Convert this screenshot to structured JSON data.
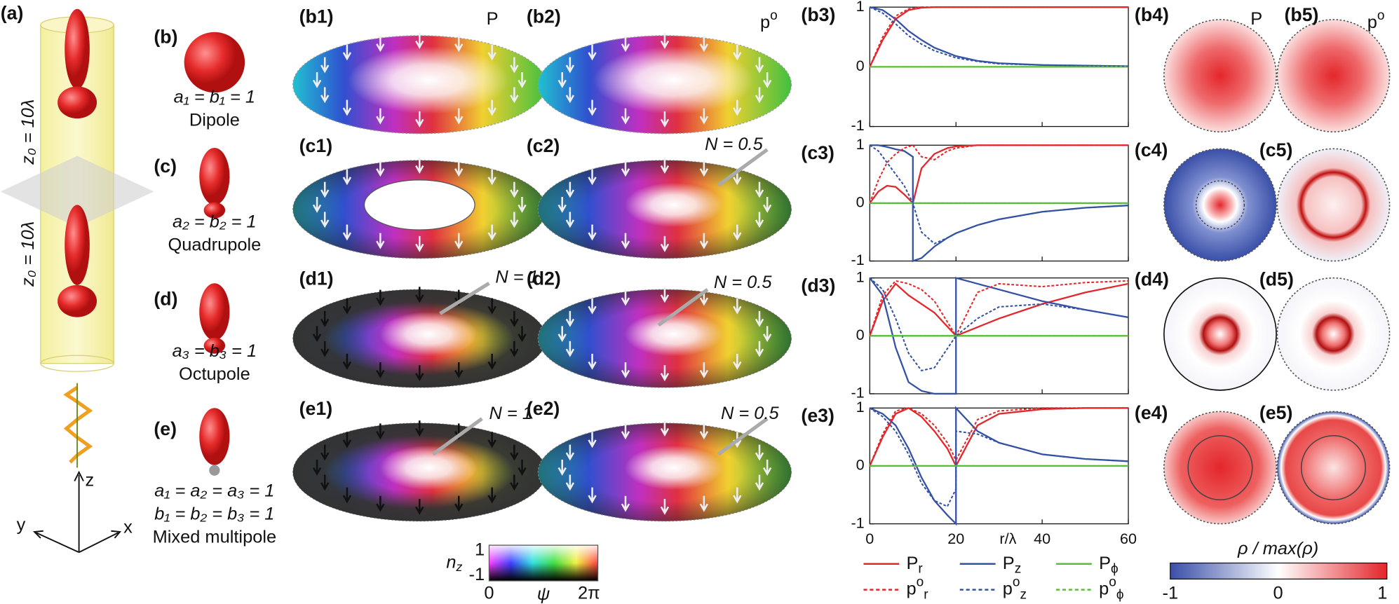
{
  "panel_a": {
    "label": "(a)",
    "z0_top": "z₀ = 10λ",
    "z0_bottom": "z₀ = 10λ",
    "axis_z": "z",
    "axis_y": "y",
    "axis_x": "x"
  },
  "rows": [
    {
      "label": "(b)",
      "coeffs": [
        "a₁ = b₁ = 1"
      ],
      "name": "Dipole",
      "left": "(b1)",
      "right": "(b2)"
    },
    {
      "label": "(c)",
      "coeffs": [
        "a₂ = b₂ = 1"
      ],
      "name": "Quadrupole",
      "left": "(c1)",
      "right": "(c2)"
    },
    {
      "label": "(d)",
      "coeffs": [
        "a₃ = b₃ = 1"
      ],
      "name": "Octupole",
      "left": "(d1)",
      "right": "(d2)"
    },
    {
      "label": "(e)",
      "coeffs": [
        "a₁ = a₂ = a₃ = 1",
        "b₁ = b₂ = b₃ = 1"
      ],
      "name": "Mixed multipole",
      "left": "(e1)",
      "right": "(e2)"
    }
  ],
  "column_titles": [
    {
      "base": "P"
    },
    {
      "base": "p",
      "sup": "o"
    }
  ],
  "n_labels": {
    "c2": "N = 0.5",
    "d1": "N = 1",
    "d2": "N = 0.5",
    "e1": "N = 1",
    "e2": "N = 0.5"
  },
  "nz_colorbar": {
    "base": "n",
    "sub": "z",
    "top": "1",
    "bottom": "-1",
    "left": "0",
    "middle": "ψ",
    "right": "2π"
  },
  "plot_axes": {
    "xlim": [
      0,
      60
    ],
    "ylim": [
      -1,
      1
    ],
    "yticks": [
      -1,
      0,
      1
    ],
    "xticks": [
      0,
      20,
      40,
      60
    ],
    "xlabel": "r/λ"
  },
  "legend": [
    {
      "base": "P",
      "sub": "r",
      "color": "#e3262a",
      "dashed": false
    },
    {
      "base": "P",
      "sub": "z",
      "color": "#3452a4",
      "dashed": false
    },
    {
      "base": "P",
      "sub": "ϕ",
      "color": "#5bbd3a",
      "dashed": false
    },
    {
      "base": "p",
      "sup": "o",
      "sub": "r",
      "color": "#e3262a",
      "dashed": true
    },
    {
      "base": "p",
      "sup": "o",
      "sub": "z",
      "color": "#3452a4",
      "dashed": true
    },
    {
      "base": "p",
      "sup": "o",
      "sub": "ϕ",
      "color": "#5bbd3a",
      "dashed": true
    }
  ],
  "plots": [
    {
      "label": "(b3)",
      "x": [
        0,
        3,
        6,
        9,
        12,
        15,
        20,
        25,
        30,
        40,
        50,
        60
      ],
      "series": [
        {
          "values": [
            0,
            0.45,
            0.8,
            0.95,
            0.99,
            1,
            1,
            1,
            1,
            1,
            1,
            1
          ]
        },
        {
          "values": [
            1,
            0.95,
            0.8,
            0.6,
            0.45,
            0.32,
            0.18,
            0.1,
            0.06,
            0.03,
            0.02,
            0.01
          ]
        },
        {
          "values": [
            0,
            0,
            0,
            0,
            0,
            0,
            0,
            0,
            0,
            0,
            0,
            0
          ]
        },
        {
          "values": [
            0,
            0.5,
            0.85,
            0.97,
            1,
            1,
            1,
            1,
            1,
            1,
            1,
            1
          ]
        },
        {
          "values": [
            1,
            0.9,
            0.72,
            0.52,
            0.38,
            0.27,
            0.15,
            0.09,
            0.05,
            0.03,
            0.02,
            0.01
          ]
        },
        {
          "values": [
            0,
            0,
            0,
            0,
            0,
            0,
            0,
            0,
            0,
            0,
            0,
            0
          ]
        }
      ]
    },
    {
      "label": "(c3)",
      "x": [
        0,
        2,
        4,
        6,
        8,
        10,
        10,
        12,
        15,
        18,
        20,
        25,
        30,
        40,
        50,
        60
      ],
      "series": [
        {
          "values": [
            0,
            0.2,
            0.3,
            0.28,
            0.15,
            0,
            0,
            0.6,
            0.85,
            0.95,
            0.98,
            1,
            1,
            1,
            1,
            1
          ]
        },
        {
          "values": [
            1,
            1,
            0.97,
            0.93,
            0.9,
            0.8,
            -1,
            -0.95,
            -0.75,
            -0.6,
            -0.52,
            -0.38,
            -0.28,
            -0.15,
            -0.08,
            -0.04
          ]
        },
        {
          "values": [
            0,
            0,
            0,
            0,
            0,
            0,
            0,
            0,
            0,
            0,
            0,
            0,
            0,
            0,
            0,
            0
          ]
        },
        {
          "values": [
            0,
            0.4,
            0.7,
            0.85,
            0.95,
            1,
            1,
            0.8,
            0.75,
            0.9,
            0.95,
            1,
            1,
            1,
            1,
            1
          ]
        },
        {
          "values": [
            1,
            0.9,
            0.7,
            0.5,
            0.3,
            0,
            0,
            -0.5,
            -0.7,
            -0.6,
            -0.52,
            -0.38,
            -0.28,
            -0.15,
            -0.08,
            -0.04
          ]
        },
        {
          "values": [
            0,
            0,
            0,
            0,
            0,
            0,
            0,
            0,
            0,
            0,
            0,
            0,
            0,
            0,
            0,
            0
          ]
        }
      ]
    },
    {
      "label": "(d3)",
      "x": [
        0,
        3,
        6,
        9,
        12,
        15,
        20,
        20,
        25,
        30,
        40,
        50,
        60
      ],
      "series": [
        {
          "values": [
            0,
            0.6,
            0.9,
            0.7,
            0.55,
            0.4,
            0,
            0,
            0.15,
            0.3,
            0.55,
            0.75,
            0.9
          ]
        },
        {
          "values": [
            1,
            0.7,
            -0.2,
            -0.8,
            -0.95,
            -1,
            -1,
            1,
            0.9,
            0.8,
            0.6,
            0.45,
            0.32
          ]
        },
        {
          "values": [
            0,
            0,
            0,
            0,
            0,
            0,
            0,
            0,
            0,
            0,
            0,
            0,
            0
          ]
        },
        {
          "values": [
            0,
            0.7,
            0.95,
            0.9,
            0.8,
            0.6,
            0,
            0,
            0.75,
            0.9,
            0.85,
            0.92,
            0.95
          ]
        },
        {
          "values": [
            1,
            0.8,
            0.3,
            -0.3,
            -0.6,
            -0.55,
            0,
            0,
            0.3,
            0.5,
            0.55,
            0.45,
            0.32
          ]
        },
        {
          "values": [
            0,
            0,
            0,
            0,
            0,
            0,
            0,
            0,
            0,
            0,
            0,
            0,
            0
          ]
        }
      ]
    },
    {
      "label": "(e3)",
      "x": [
        0,
        3,
        6,
        9,
        12,
        15,
        18,
        20,
        20,
        25,
        30,
        40,
        50,
        60
      ],
      "series": [
        {
          "values": [
            0,
            0.5,
            0.9,
            1,
            0.85,
            0.6,
            0.3,
            0,
            0,
            0.7,
            0.9,
            0.98,
            1,
            1
          ]
        },
        {
          "values": [
            1,
            0.9,
            0.7,
            0.3,
            -0.2,
            -0.6,
            -0.85,
            -1,
            1,
            0.6,
            0.4,
            0.2,
            0.12,
            0.08
          ]
        },
        {
          "values": [
            0,
            0,
            0,
            0,
            0,
            0,
            0,
            0,
            0,
            0,
            0,
            0,
            0,
            0
          ]
        },
        {
          "values": [
            0,
            0.55,
            0.95,
            1,
            0.9,
            0.7,
            0.4,
            0.1,
            0.1,
            0.8,
            0.95,
            1,
            1,
            1
          ]
        },
        {
          "values": [
            1,
            0.85,
            0.6,
            0.2,
            -0.3,
            -0.6,
            -0.7,
            -0.4,
            0.6,
            0.55,
            0.4,
            0.2,
            0.12,
            0.08
          ]
        },
        {
          "values": [
            0,
            0,
            0,
            0,
            0,
            0,
            0,
            0,
            0,
            0,
            0,
            0,
            0,
            0
          ]
        }
      ]
    }
  ],
  "disk_labels": [
    [
      "(b4)",
      "(b5)"
    ],
    [
      "(c4)",
      "(c5)"
    ],
    [
      "(d4)",
      "(d5)"
    ],
    [
      "(e4)",
      "(e5)"
    ]
  ],
  "rho_colorbar": {
    "title": "ρ / max(ρ)",
    "ticks": [
      "-1",
      "0",
      "1"
    ]
  }
}
